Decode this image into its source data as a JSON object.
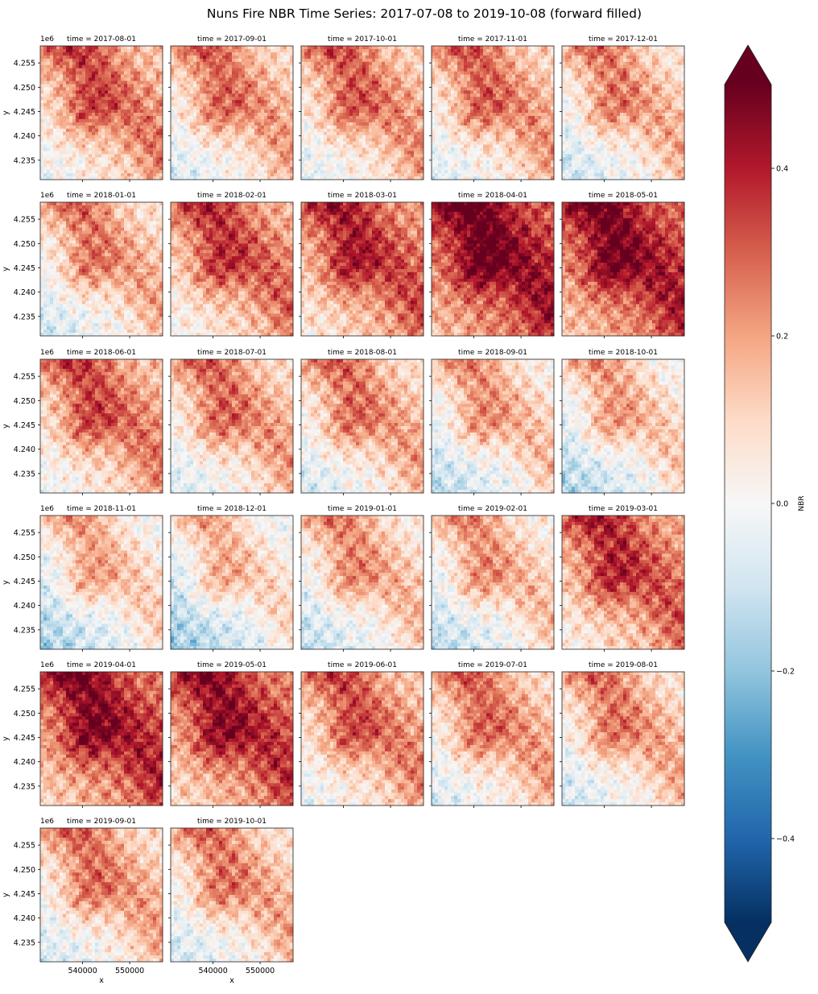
{
  "chart_data": {
    "type": "heatmap",
    "title": "Nuns Fire NBR Time Series: 2017-07-08 to 2019-10-08 (forward filled)",
    "panel_title_prefix": "time = ",
    "panels": [
      {
        "time": "2017-08-01",
        "mean_nbr": 0.15
      },
      {
        "time": "2017-09-01",
        "mean_nbr": 0.1
      },
      {
        "time": "2017-10-01",
        "mean_nbr": 0.12
      },
      {
        "time": "2017-11-01",
        "mean_nbr": 0.11
      },
      {
        "time": "2017-12-01",
        "mean_nbr": 0.07
      },
      {
        "time": "2018-01-01",
        "mean_nbr": 0.08
      },
      {
        "time": "2018-02-01",
        "mean_nbr": 0.18
      },
      {
        "time": "2018-03-01",
        "mean_nbr": 0.22
      },
      {
        "time": "2018-04-01",
        "mean_nbr": 0.32
      },
      {
        "time": "2018-05-01",
        "mean_nbr": 0.3
      },
      {
        "time": "2018-06-01",
        "mean_nbr": 0.15
      },
      {
        "time": "2018-07-01",
        "mean_nbr": 0.1
      },
      {
        "time": "2018-08-01",
        "mean_nbr": 0.09
      },
      {
        "time": "2018-09-01",
        "mean_nbr": 0.04
      },
      {
        "time": "2018-10-01",
        "mean_nbr": 0.02
      },
      {
        "time": "2018-11-01",
        "mean_nbr": 0.01
      },
      {
        "time": "2018-12-01",
        "mean_nbr": -0.01
      },
      {
        "time": "2019-01-01",
        "mean_nbr": 0.05
      },
      {
        "time": "2019-02-01",
        "mean_nbr": 0.04
      },
      {
        "time": "2019-03-01",
        "mean_nbr": 0.2
      },
      {
        "time": "2019-04-01",
        "mean_nbr": 0.28
      },
      {
        "time": "2019-05-01",
        "mean_nbr": 0.26
      },
      {
        "time": "2019-06-01",
        "mean_nbr": 0.14
      },
      {
        "time": "2019-07-01",
        "mean_nbr": 0.1
      },
      {
        "time": "2019-08-01",
        "mean_nbr": 0.08
      },
      {
        "time": "2019-09-01",
        "mean_nbr": 0.09
      },
      {
        "time": "2019-10-01",
        "mean_nbr": 0.08
      }
    ],
    "grid": {
      "rows": 6,
      "cols": 5
    },
    "xlabel": "x",
    "ylabel": "y",
    "x_ticks": [
      540000,
      550000
    ],
    "x_tick_labels": [
      "540000",
      "550000"
    ],
    "y_ticks": [
      4235000,
      4240000,
      4245000,
      4250000,
      4255000
    ],
    "y_tick_labels": [
      "4.235",
      "4.240",
      "4.245",
      "4.250",
      "4.255"
    ],
    "y_offset_label": "1e6",
    "xlim": [
      531000,
      557000
    ],
    "ylim": [
      4231000,
      4258500
    ],
    "colorbar": {
      "label": "NBR",
      "vmin": -0.5,
      "vmax": 0.5,
      "ticks": [
        -0.4,
        -0.2,
        0.0,
        0.2,
        0.4
      ],
      "tick_labels": [
        "−0.4",
        "−0.2",
        "0.0",
        "0.2",
        "0.4"
      ],
      "extend": "both",
      "colormap": "RdBu_r",
      "colors": [
        "#053061",
        "#2166ac",
        "#4393c3",
        "#92c5de",
        "#d1e5f0",
        "#f7f7f7",
        "#fddbc7",
        "#f4a582",
        "#d6604d",
        "#b2182b",
        "#67001f"
      ]
    }
  }
}
